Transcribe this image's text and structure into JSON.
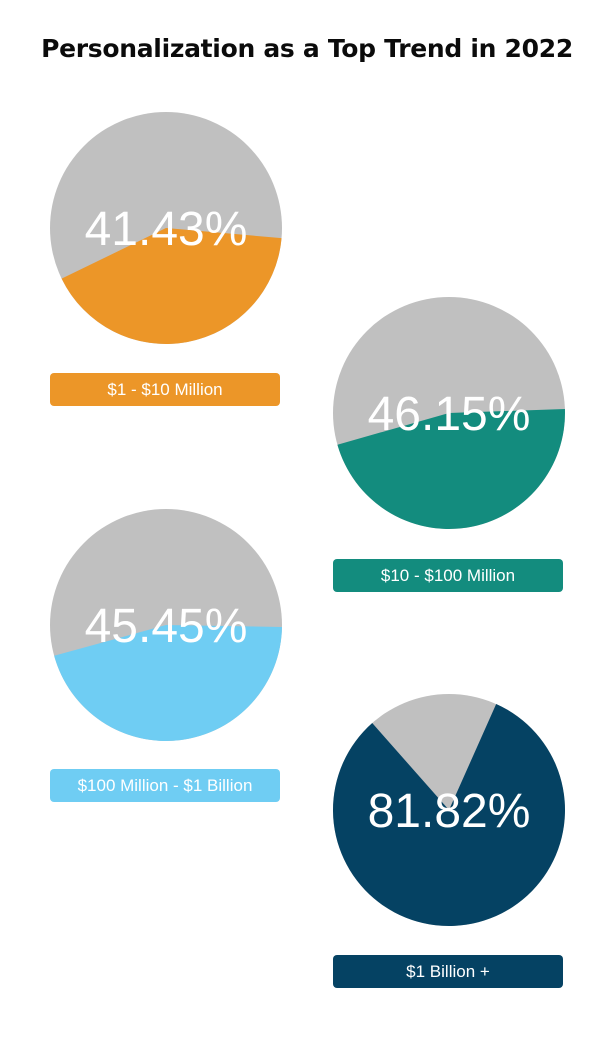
{
  "title": "Personalization as a Top Trend in 2022",
  "colors": {
    "rest": "#c0c0c0",
    "text": "#ffffff"
  },
  "chart_data": [
    {
      "type": "pie",
      "category": "$1 - $10 Million",
      "value": 41.43,
      "value_label": "41.43%",
      "color": "#ec9628",
      "start_angle_deg": 95
    },
    {
      "type": "pie",
      "category": "$10 - $100 Million",
      "value": 46.15,
      "value_label": "46.15%",
      "color": "#138c7e",
      "start_angle_deg": 88
    },
    {
      "type": "pie",
      "category": "$100 Million - $1 Billion",
      "value": 45.45,
      "value_label": "45.45%",
      "color": "#6fcdf3",
      "start_angle_deg": 91
    },
    {
      "type": "pie",
      "category": "$1 Billion +",
      "value": 81.82,
      "value_label": "81.82%",
      "color": "#054263",
      "start_angle_deg": 24
    }
  ]
}
